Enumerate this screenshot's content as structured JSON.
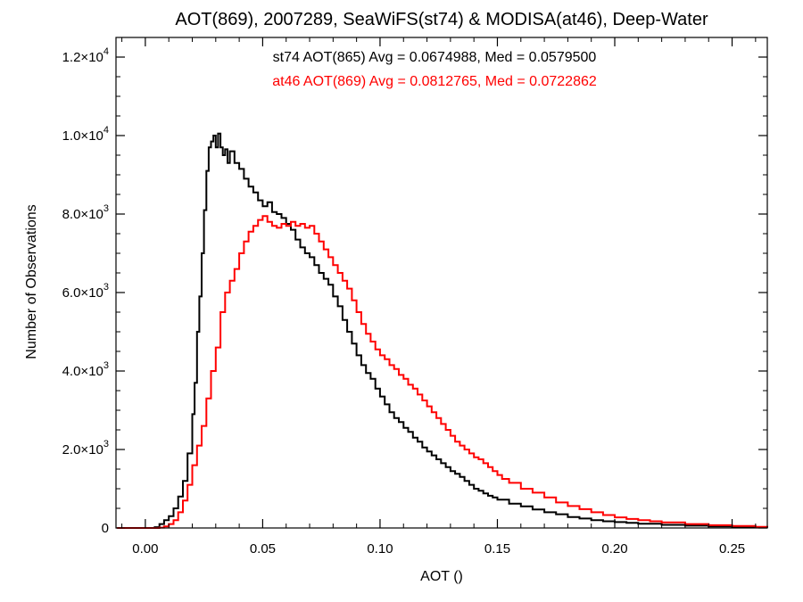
{
  "chart_data": {
    "type": "line",
    "title": "AOT(869), 2007289, SeaWiFS(st74) & MODISA(at46), Deep-Water",
    "xlabel": "AOT ()",
    "ylabel": "Number of Observations",
    "xlim": [
      -0.0125,
      0.265
    ],
    "ylim": [
      0,
      12500
    ],
    "x_ticks": [
      {
        "value": 0.0,
        "label": "0.00"
      },
      {
        "value": 0.05,
        "label": "0.05"
      },
      {
        "value": 0.1,
        "label": "0.10"
      },
      {
        "value": 0.15,
        "label": "0.15"
      },
      {
        "value": 0.2,
        "label": "0.20"
      },
      {
        "value": 0.25,
        "label": "0.25"
      }
    ],
    "y_ticks": [
      {
        "value": 0,
        "mantissa": "0",
        "exponent": ""
      },
      {
        "value": 2000,
        "mantissa": "2.0×10",
        "exponent": "3"
      },
      {
        "value": 4000,
        "mantissa": "4.0×10",
        "exponent": "3"
      },
      {
        "value": 6000,
        "mantissa": "6.0×10",
        "exponent": "3"
      },
      {
        "value": 8000,
        "mantissa": "8.0×10",
        "exponent": "3"
      },
      {
        "value": 10000,
        "mantissa": "1.0×10",
        "exponent": "4"
      },
      {
        "value": 12000,
        "mantissa": "1.2×10",
        "exponent": "4"
      }
    ],
    "annotations": [
      {
        "text": "st74 AOT(865) Avg = 0.0674988, Med = 0.0579500",
        "color": "#000000"
      },
      {
        "text": "at46 AOT(869) Avg = 0.0812765, Med = 0.0722862",
        "color": "#ff0000"
      }
    ],
    "series": [
      {
        "color": "#000000",
        "points": [
          [
            -0.012,
            0
          ],
          [
            0.0,
            0
          ],
          [
            0.004,
            20
          ],
          [
            0.006,
            100
          ],
          [
            0.008,
            200
          ],
          [
            0.01,
            300
          ],
          [
            0.012,
            500
          ],
          [
            0.014,
            800
          ],
          [
            0.016,
            1200
          ],
          [
            0.018,
            1900
          ],
          [
            0.02,
            2900
          ],
          [
            0.021,
            3700
          ],
          [
            0.022,
            5000
          ],
          [
            0.023,
            5900
          ],
          [
            0.024,
            7000
          ],
          [
            0.025,
            8100
          ],
          [
            0.026,
            9100
          ],
          [
            0.027,
            9700
          ],
          [
            0.028,
            9850
          ],
          [
            0.029,
            10000
          ],
          [
            0.03,
            9700
          ],
          [
            0.031,
            10050
          ],
          [
            0.032,
            9700
          ],
          [
            0.033,
            9500
          ],
          [
            0.034,
            9650
          ],
          [
            0.035,
            9300
          ],
          [
            0.036,
            9600
          ],
          [
            0.038,
            9300
          ],
          [
            0.04,
            9150
          ],
          [
            0.042,
            8900
          ],
          [
            0.044,
            8700
          ],
          [
            0.046,
            8550
          ],
          [
            0.048,
            8350
          ],
          [
            0.05,
            8200
          ],
          [
            0.052,
            8300
          ],
          [
            0.054,
            8050
          ],
          [
            0.056,
            8000
          ],
          [
            0.058,
            7900
          ],
          [
            0.06,
            7750
          ],
          [
            0.062,
            7600
          ],
          [
            0.064,
            7350
          ],
          [
            0.066,
            7150
          ],
          [
            0.068,
            7000
          ],
          [
            0.07,
            6900
          ],
          [
            0.072,
            6700
          ],
          [
            0.074,
            6500
          ],
          [
            0.076,
            6350
          ],
          [
            0.078,
            6200
          ],
          [
            0.08,
            5900
          ],
          [
            0.082,
            5650
          ],
          [
            0.084,
            5300
          ],
          [
            0.086,
            5000
          ],
          [
            0.088,
            4700
          ],
          [
            0.09,
            4400
          ],
          [
            0.092,
            4150
          ],
          [
            0.094,
            3950
          ],
          [
            0.096,
            3800
          ],
          [
            0.098,
            3550
          ],
          [
            0.1,
            3350
          ],
          [
            0.102,
            3150
          ],
          [
            0.104,
            2950
          ],
          [
            0.106,
            2800
          ],
          [
            0.108,
            2700
          ],
          [
            0.11,
            2550
          ],
          [
            0.112,
            2450
          ],
          [
            0.114,
            2300
          ],
          [
            0.116,
            2200
          ],
          [
            0.118,
            2050
          ],
          [
            0.12,
            1950
          ],
          [
            0.122,
            1850
          ],
          [
            0.124,
            1750
          ],
          [
            0.126,
            1650
          ],
          [
            0.128,
            1550
          ],
          [
            0.13,
            1450
          ],
          [
            0.132,
            1380
          ],
          [
            0.134,
            1300
          ],
          [
            0.136,
            1200
          ],
          [
            0.138,
            1100
          ],
          [
            0.14,
            1000
          ],
          [
            0.142,
            950
          ],
          [
            0.144,
            880
          ],
          [
            0.146,
            820
          ],
          [
            0.148,
            780
          ],
          [
            0.15,
            720
          ],
          [
            0.155,
            620
          ],
          [
            0.16,
            550
          ],
          [
            0.165,
            470
          ],
          [
            0.17,
            400
          ],
          [
            0.175,
            350
          ],
          [
            0.18,
            280
          ],
          [
            0.185,
            240
          ],
          [
            0.19,
            200
          ],
          [
            0.195,
            170
          ],
          [
            0.2,
            150
          ],
          [
            0.205,
            130
          ],
          [
            0.21,
            110
          ],
          [
            0.22,
            80
          ],
          [
            0.23,
            60
          ],
          [
            0.24,
            40
          ],
          [
            0.25,
            25
          ],
          [
            0.26,
            15
          ],
          [
            0.265,
            10
          ]
        ]
      },
      {
        "color": "#ff0000",
        "points": [
          [
            -0.012,
            0
          ],
          [
            0.004,
            0
          ],
          [
            0.006,
            10
          ],
          [
            0.008,
            40
          ],
          [
            0.01,
            100
          ],
          [
            0.012,
            200
          ],
          [
            0.014,
            400
          ],
          [
            0.016,
            700
          ],
          [
            0.018,
            1100
          ],
          [
            0.02,
            1600
          ],
          [
            0.022,
            2100
          ],
          [
            0.024,
            2600
          ],
          [
            0.026,
            3300
          ],
          [
            0.028,
            4000
          ],
          [
            0.03,
            4600
          ],
          [
            0.032,
            5500
          ],
          [
            0.034,
            6000
          ],
          [
            0.036,
            6300
          ],
          [
            0.038,
            6600
          ],
          [
            0.04,
            7000
          ],
          [
            0.042,
            7300
          ],
          [
            0.044,
            7550
          ],
          [
            0.046,
            7700
          ],
          [
            0.048,
            7850
          ],
          [
            0.05,
            7950
          ],
          [
            0.052,
            7800
          ],
          [
            0.054,
            7700
          ],
          [
            0.056,
            7650
          ],
          [
            0.058,
            7750
          ],
          [
            0.06,
            7700
          ],
          [
            0.062,
            7800
          ],
          [
            0.064,
            7700
          ],
          [
            0.066,
            7750
          ],
          [
            0.068,
            7650
          ],
          [
            0.07,
            7700
          ],
          [
            0.072,
            7500
          ],
          [
            0.074,
            7300
          ],
          [
            0.076,
            7100
          ],
          [
            0.078,
            6900
          ],
          [
            0.08,
            6700
          ],
          [
            0.082,
            6500
          ],
          [
            0.084,
            6300
          ],
          [
            0.086,
            6100
          ],
          [
            0.088,
            5800
          ],
          [
            0.09,
            5500
          ],
          [
            0.092,
            5200
          ],
          [
            0.094,
            4950
          ],
          [
            0.096,
            4750
          ],
          [
            0.098,
            4550
          ],
          [
            0.1,
            4400
          ],
          [
            0.102,
            4300
          ],
          [
            0.104,
            4150
          ],
          [
            0.106,
            4050
          ],
          [
            0.108,
            3900
          ],
          [
            0.11,
            3800
          ],
          [
            0.112,
            3650
          ],
          [
            0.114,
            3550
          ],
          [
            0.116,
            3400
          ],
          [
            0.118,
            3250
          ],
          [
            0.12,
            3100
          ],
          [
            0.122,
            2950
          ],
          [
            0.124,
            2800
          ],
          [
            0.126,
            2650
          ],
          [
            0.128,
            2500
          ],
          [
            0.13,
            2350
          ],
          [
            0.132,
            2200
          ],
          [
            0.134,
            2100
          ],
          [
            0.136,
            2000
          ],
          [
            0.138,
            1900
          ],
          [
            0.14,
            1800
          ],
          [
            0.142,
            1750
          ],
          [
            0.144,
            1650
          ],
          [
            0.146,
            1550
          ],
          [
            0.148,
            1450
          ],
          [
            0.15,
            1350
          ],
          [
            0.152,
            1250
          ],
          [
            0.155,
            1150
          ],
          [
            0.16,
            1000
          ],
          [
            0.165,
            900
          ],
          [
            0.17,
            780
          ],
          [
            0.175,
            650
          ],
          [
            0.18,
            560
          ],
          [
            0.185,
            480
          ],
          [
            0.19,
            400
          ],
          [
            0.195,
            330
          ],
          [
            0.2,
            270
          ],
          [
            0.205,
            230
          ],
          [
            0.21,
            200
          ],
          [
            0.215,
            170
          ],
          [
            0.22,
            140
          ],
          [
            0.23,
            100
          ],
          [
            0.24,
            70
          ],
          [
            0.25,
            50
          ],
          [
            0.26,
            30
          ],
          [
            0.265,
            25
          ]
        ]
      }
    ]
  }
}
